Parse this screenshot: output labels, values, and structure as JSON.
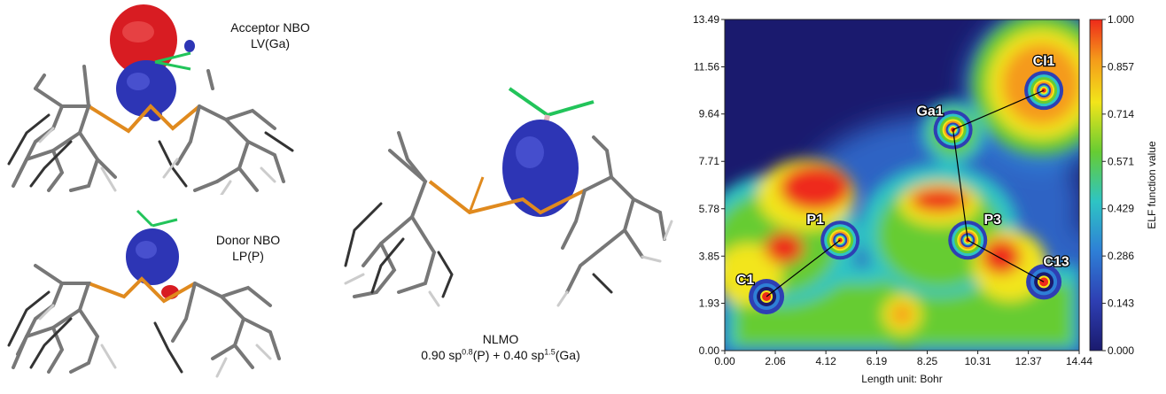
{
  "left_top": {
    "title_line1": "Acceptor NBO",
    "title_line2": "LV(Ga)"
  },
  "left_bottom": {
    "title_line1": "Donor NBO",
    "title_line2": "LP(P)"
  },
  "middle": {
    "title": "NLMO",
    "formula": {
      "coef1": "0.90 sp",
      "exp1": "0.8",
      "atom1": "(P) + 0.40 sp",
      "exp2": "1.5",
      "atom2": "(Ga)"
    }
  },
  "elf_map": {
    "x_axis_label": "Length unit: Bohr",
    "colorbar_label": "ELF function value",
    "x_ticks": [
      "0.00",
      "2.06",
      "4.12",
      "6.19",
      "8.25",
      "10.31",
      "12.37",
      "14.44"
    ],
    "y_ticks": [
      "0.00",
      "1.93",
      "3.85",
      "5.78",
      "7.71",
      "9.64",
      "11.56",
      "13.49"
    ],
    "colorbar_ticks": [
      "0.000",
      "0.143",
      "0.286",
      "0.429",
      "0.571",
      "0.714",
      "0.857",
      "1.000"
    ],
    "atoms": [
      {
        "label": "Cl1",
        "x": 13.0,
        "y": 10.6
      },
      {
        "label": "Ga1",
        "x": 9.3,
        "y": 9.0
      },
      {
        "label": "P1",
        "x": 4.7,
        "y": 4.5
      },
      {
        "label": "P3",
        "x": 9.9,
        "y": 4.5
      },
      {
        "label": "C1",
        "x": 1.7,
        "y": 2.2
      },
      {
        "label": "C13",
        "x": 13.0,
        "y": 2.8
      }
    ],
    "bonds": [
      [
        "C1",
        "P1"
      ],
      [
        "Ga1",
        "Cl1"
      ],
      [
        "Ga1",
        "P3"
      ],
      [
        "P3",
        "C13"
      ]
    ],
    "xlim": [
      0.0,
      14.44
    ],
    "ylim": [
      0.0,
      13.49
    ],
    "colors": {
      "low": "#1a1a6e",
      "mid_low": "#2e63c4",
      "mid": "#2ec4c4",
      "mid_high": "#66cc33",
      "high_mid": "#f2e51a",
      "high": "#ee2a1a"
    }
  },
  "orbital_colors": {
    "positive": "#2d35b5",
    "negative": "#d81c22",
    "p_bond": "#e08a1e",
    "cl_bond": "#22c45a",
    "frame": "#666666"
  }
}
